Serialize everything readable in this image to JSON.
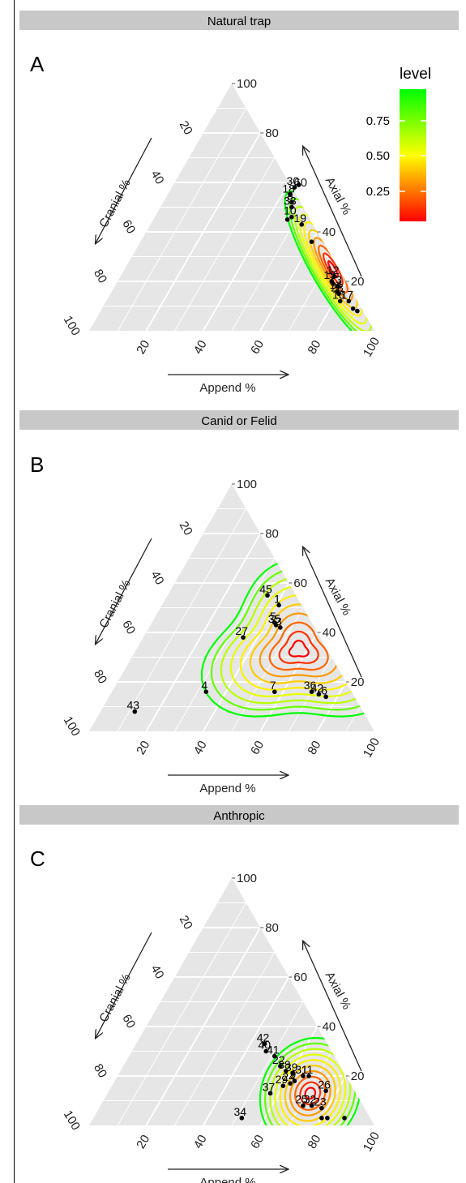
{
  "colors": {
    "panel_bg": "#e6e6e6",
    "grid": "#ffffff",
    "strip": "#c8c8c8",
    "point": "#000000",
    "contour_low": "#ff0000",
    "contour_mid": "#ffff00",
    "contour_high": "#00ff00"
  },
  "legend": {
    "title": "level",
    "labels": [
      "0.75",
      "0.50",
      "0.25"
    ]
  },
  "chart_data": [
    {
      "type": "scatter",
      "subtype": "ternary",
      "strip_title": "Natural trap",
      "panel_label": "A",
      "axis_labels": {
        "left": "Cranial %",
        "right": "Axial %",
        "bottom": "Append %"
      },
      "ticks": [
        "20",
        "40",
        "60",
        "80",
        "100"
      ],
      "density_center": {
        "append": 73,
        "axial": 25
      },
      "contour_spread": 8,
      "contour_shape": "elongated",
      "points": [
        {
          "label": "30",
          "append": 43,
          "axial": 58
        },
        {
          "label": "",
          "append": 44,
          "axial": 59
        },
        {
          "label": "18",
          "append": 43,
          "axial": 55
        },
        {
          "label": "8",
          "append": 45,
          "axial": 52
        },
        {
          "label": "33",
          "append": 46,
          "axial": 50
        },
        {
          "label": "10",
          "append": 48,
          "axial": 46
        },
        {
          "label": "",
          "append": 47,
          "axial": 45
        },
        {
          "label": "19",
          "append": 53,
          "axial": 43
        },
        {
          "label": "",
          "append": 60,
          "axial": 36
        },
        {
          "label": "12",
          "append": 75,
          "axial": 22
        },
        {
          "label": "15",
          "append": 75,
          "axial": 20
        },
        {
          "label": "",
          "append": 76,
          "axial": 19
        },
        {
          "label": "13",
          "append": 78,
          "axial": 18
        },
        {
          "label": "14",
          "append": 79,
          "axial": 16
        },
        {
          "label": "28",
          "append": 80,
          "axial": 15
        },
        {
          "label": "16",
          "append": 82,
          "axial": 12
        },
        {
          "label": "17",
          "append": 85,
          "axial": 12
        },
        {
          "label": "",
          "append": 88,
          "axial": 9
        },
        {
          "label": "",
          "append": 90,
          "axial": 8
        }
      ]
    },
    {
      "type": "scatter",
      "subtype": "ternary",
      "strip_title": "Canid or Felid",
      "panel_label": "B",
      "axis_labels": {
        "left": "Cranial %",
        "right": "Axial %",
        "bottom": "Append %"
      },
      "ticks": [
        "20",
        "40",
        "60",
        "80",
        "100"
      ],
      "density_center": {
        "append": 57,
        "axial": 33
      },
      "contour_spread": 14,
      "contour_shape": "triangular",
      "points": [
        {
          "label": "45",
          "append": 35,
          "axial": 55
        },
        {
          "label": "1",
          "append": 41,
          "axial": 51
        },
        {
          "label": "5",
          "append": 43,
          "axial": 44
        },
        {
          "label": "35",
          "append": 44,
          "axial": 43
        },
        {
          "label": "3",
          "append": 46,
          "axial": 42
        },
        {
          "label": "27",
          "append": 35,
          "axial": 38
        },
        {
          "label": "7",
          "append": 57,
          "axial": 16
        },
        {
          "label": "36",
          "append": 70,
          "axial": 16
        },
        {
          "label": "42",
          "append": 73,
          "axial": 15
        },
        {
          "label": "6",
          "append": 76,
          "axial": 14
        },
        {
          "label": "",
          "append": 76,
          "axial": 14
        },
        {
          "label": "4",
          "append": 33,
          "axial": 16
        },
        {
          "label": "43",
          "append": 12,
          "axial": 8
        }
      ]
    },
    {
      "type": "scatter",
      "subtype": "ternary",
      "strip_title": "Anthropic",
      "panel_label": "C",
      "axis_labels": {
        "left": "Cranial %",
        "right": "Axial %",
        "bottom": "Append %"
      },
      "ticks": [
        "20",
        "40",
        "60",
        "80",
        "100"
      ],
      "density_center": {
        "append": 71,
        "axial": 13
      },
      "contour_spread": 8,
      "contour_shape": "compact",
      "points": [
        {
          "label": "42",
          "append": 45,
          "axial": 33
        },
        {
          "label": "40",
          "append": 47,
          "axial": 30
        },
        {
          "label": "41",
          "append": 51,
          "axial": 28
        },
        {
          "label": "22",
          "append": 55,
          "axial": 24
        },
        {
          "label": "38",
          "append": 58,
          "axial": 22
        },
        {
          "label": "39",
          "append": 61,
          "axial": 21
        },
        {
          "label": "31",
          "append": 65,
          "axial": 20
        },
        {
          "label": "11",
          "append": 67,
          "axial": 20
        },
        {
          "label": "9",
          "append": 63,
          "axial": 18
        },
        {
          "label": "24",
          "append": 62,
          "axial": 17
        },
        {
          "label": "29",
          "append": 60,
          "axial": 16
        },
        {
          "label": "37",
          "append": 57,
          "axial": 13
        },
        {
          "label": "26",
          "append": 76,
          "axial": 14
        },
        {
          "label": "25",
          "append": 71,
          "axial": 8
        },
        {
          "label": "32",
          "append": 74,
          "axial": 8
        },
        {
          "label": "23",
          "append": 78,
          "axial": 7
        },
        {
          "label": "34",
          "append": 52,
          "axial": 3
        },
        {
          "label": "",
          "append": 82,
          "axial": 3
        },
        {
          "label": "",
          "append": 80,
          "axial": 3
        },
        {
          "label": "",
          "append": 88,
          "axial": 3
        }
      ]
    }
  ]
}
